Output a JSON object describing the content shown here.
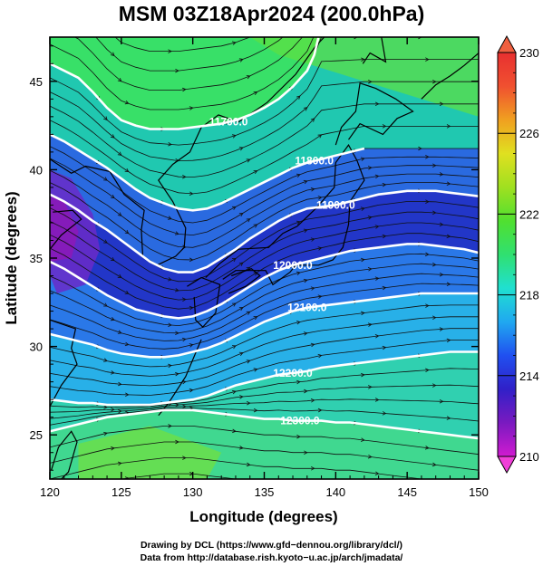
{
  "title": "MSM 03Z18Apr2024 (200.0hPa)",
  "xlabel": "Longitude (degrees)",
  "ylabel": "Latitude  (degrees)",
  "credits": [
    "Drawing by DCL (https://www.gfd−dennou.org/library/dcl/)",
    "Data from http://database.rish.kyoto−u.ac.jp/arch/jmadata/"
  ],
  "chart_data": {
    "type": "heatmap",
    "xlim": [
      120,
      150
    ],
    "ylim": [
      22.5,
      47.5
    ],
    "x_ticks": [
      "120",
      "125",
      "130",
      "135",
      "140",
      "145",
      "150"
    ],
    "y_ticks": [
      "25",
      "30",
      "35",
      "40",
      "45"
    ],
    "colorbar": {
      "range": [
        210,
        230
      ],
      "ticks": [
        "210",
        "214",
        "218",
        "222",
        "226",
        "230"
      ],
      "colors": [
        "#d01bd0",
        "#7a1ac0",
        "#3020c8",
        "#2050f0",
        "#20a8f0",
        "#20e0d0",
        "#30e070",
        "#50e030",
        "#a0e020",
        "#e0e020",
        "#f0a020",
        "#f05030",
        "#e83030"
      ]
    },
    "contours": [
      {
        "label": "11700.0",
        "points": [
          [
            120.0,
            46.0
          ],
          [
            121.0,
            45.6
          ],
          [
            122.0,
            45.2
          ],
          [
            123.0,
            44.4
          ],
          [
            124.0,
            43.5
          ],
          [
            125.0,
            42.8
          ],
          [
            126.0,
            42.5
          ],
          [
            127.0,
            42.3
          ],
          [
            128.0,
            42.3
          ],
          [
            129.0,
            42.3
          ],
          [
            130.0,
            42.4
          ],
          [
            131.0,
            42.5
          ],
          [
            132.0,
            42.6
          ],
          [
            133.0,
            42.8
          ],
          [
            134.0,
            43.1
          ],
          [
            135.0,
            43.5
          ],
          [
            136.0,
            44.0
          ],
          [
            137.0,
            44.7
          ],
          [
            138.0,
            45.6
          ],
          [
            138.5,
            46.5
          ],
          [
            138.8,
            47.5
          ]
        ]
      },
      {
        "label": "11800.0",
        "points": [
          [
            120.0,
            42.0
          ],
          [
            121.0,
            41.6
          ],
          [
            122.0,
            41.1
          ],
          [
            123.0,
            40.6
          ],
          [
            124.0,
            40.1
          ],
          [
            125.0,
            39.5
          ],
          [
            126.0,
            38.9
          ],
          [
            127.0,
            38.4
          ],
          [
            128.0,
            38.1
          ],
          [
            129.0,
            37.8
          ],
          [
            130.0,
            37.7
          ],
          [
            131.0,
            37.8
          ],
          [
            132.0,
            38.1
          ],
          [
            133.0,
            38.5
          ],
          [
            134.0,
            38.9
          ],
          [
            135.0,
            39.3
          ],
          [
            136.0,
            39.7
          ],
          [
            137.0,
            40.1
          ],
          [
            138.0,
            40.4
          ],
          [
            139.0,
            40.6
          ],
          [
            140.0,
            40.8
          ],
          [
            141.0,
            41.0
          ],
          [
            142.0,
            41.2
          ]
        ]
      },
      {
        "label": "11900.0",
        "points": [
          [
            120.0,
            38.6
          ],
          [
            121.0,
            38.2
          ],
          [
            122.0,
            37.7
          ],
          [
            123.0,
            37.1
          ],
          [
            124.0,
            36.6
          ],
          [
            125.0,
            36.0
          ],
          [
            126.0,
            35.4
          ],
          [
            127.0,
            34.8
          ],
          [
            128.0,
            34.4
          ],
          [
            129.0,
            34.2
          ],
          [
            130.0,
            34.2
          ],
          [
            131.0,
            34.5
          ],
          [
            132.0,
            35.0
          ],
          [
            133.0,
            35.5
          ],
          [
            134.0,
            36.1
          ],
          [
            135.0,
            36.6
          ],
          [
            136.0,
            37.1
          ],
          [
            137.0,
            37.5
          ],
          [
            138.0,
            37.8
          ],
          [
            139.0,
            37.9
          ],
          [
            140.0,
            38.0
          ],
          [
            141.0,
            38.2
          ],
          [
            142.0,
            38.4
          ],
          [
            143.0,
            38.6
          ],
          [
            144.0,
            38.7
          ],
          [
            145.0,
            38.8
          ],
          [
            146.0,
            38.8
          ],
          [
            147.0,
            38.8
          ],
          [
            148.0,
            38.7
          ],
          [
            149.0,
            38.6
          ],
          [
            150.0,
            38.5
          ]
        ]
      },
      {
        "label": "12000.0",
        "points": [
          [
            120.0,
            34.8
          ],
          [
            121.0,
            34.4
          ],
          [
            122.0,
            33.9
          ],
          [
            123.0,
            33.4
          ],
          [
            124.0,
            32.9
          ],
          [
            125.0,
            32.5
          ],
          [
            126.0,
            32.1
          ],
          [
            127.0,
            31.9
          ],
          [
            128.0,
            31.7
          ],
          [
            129.0,
            31.6
          ],
          [
            130.0,
            31.7
          ],
          [
            131.0,
            32.0
          ],
          [
            132.0,
            32.4
          ],
          [
            133.0,
            32.9
          ],
          [
            134.0,
            33.4
          ],
          [
            135.0,
            33.9
          ],
          [
            136.0,
            34.3
          ],
          [
            137.0,
            34.6
          ],
          [
            138.0,
            34.8
          ],
          [
            139.0,
            35.0
          ],
          [
            140.0,
            35.2
          ],
          [
            141.0,
            35.4
          ],
          [
            142.0,
            35.5
          ],
          [
            143.0,
            35.6
          ],
          [
            144.0,
            35.7
          ],
          [
            145.0,
            35.8
          ],
          [
            146.0,
            35.8
          ],
          [
            147.0,
            35.7
          ],
          [
            148.0,
            35.6
          ],
          [
            149.0,
            35.5
          ],
          [
            150.0,
            35.3
          ]
        ]
      },
      {
        "label": "12100.0",
        "points": [
          [
            120.0,
            30.7
          ],
          [
            121.0,
            30.5
          ],
          [
            122.0,
            30.3
          ],
          [
            123.0,
            30.1
          ],
          [
            124.0,
            29.8
          ],
          [
            125.0,
            29.6
          ],
          [
            126.0,
            29.5
          ],
          [
            127.0,
            29.4
          ],
          [
            128.0,
            29.4
          ],
          [
            129.0,
            29.5
          ],
          [
            130.0,
            29.7
          ],
          [
            131.0,
            29.9
          ],
          [
            132.0,
            30.2
          ],
          [
            133.0,
            30.6
          ],
          [
            134.0,
            31.0
          ],
          [
            135.0,
            31.4
          ],
          [
            136.0,
            31.7
          ],
          [
            137.0,
            32.0
          ],
          [
            138.0,
            32.2
          ],
          [
            139.0,
            32.3
          ],
          [
            140.0,
            32.4
          ],
          [
            141.0,
            32.5
          ],
          [
            142.0,
            32.6
          ],
          [
            143.0,
            32.7
          ],
          [
            144.0,
            32.8
          ],
          [
            145.0,
            32.9
          ],
          [
            146.0,
            33.0
          ],
          [
            147.0,
            33.0
          ],
          [
            148.0,
            33.0
          ],
          [
            149.0,
            33.0
          ],
          [
            150.0,
            33.0
          ]
        ]
      },
      {
        "label": "12200.0",
        "points": [
          [
            120.0,
            27.0
          ],
          [
            121.0,
            26.9
          ],
          [
            122.0,
            26.8
          ],
          [
            123.0,
            26.8
          ],
          [
            124.0,
            26.7
          ],
          [
            125.0,
            26.7
          ],
          [
            126.0,
            26.7
          ],
          [
            127.0,
            26.7
          ],
          [
            128.0,
            26.8
          ],
          [
            129.0,
            26.9
          ],
          [
            130.0,
            27.0
          ],
          [
            131.0,
            27.2
          ],
          [
            132.0,
            27.5
          ],
          [
            133.0,
            27.8
          ],
          [
            134.0,
            28.0
          ],
          [
            135.0,
            28.2
          ],
          [
            136.0,
            28.4
          ],
          [
            137.0,
            28.5
          ],
          [
            138.0,
            28.6
          ],
          [
            139.0,
            28.8
          ],
          [
            140.0,
            28.9
          ],
          [
            141.0,
            29.0
          ],
          [
            142.0,
            29.1
          ],
          [
            143.0,
            29.2
          ],
          [
            144.0,
            29.3
          ],
          [
            145.0,
            29.4
          ],
          [
            146.0,
            29.5
          ],
          [
            147.0,
            29.6
          ],
          [
            148.0,
            29.7
          ],
          [
            149.0,
            29.7
          ],
          [
            150.0,
            29.7
          ]
        ]
      },
      {
        "label": "12300.0",
        "points": [
          [
            120.0,
            25.2
          ],
          [
            121.0,
            25.4
          ],
          [
            122.0,
            25.6
          ],
          [
            123.0,
            25.8
          ],
          [
            124.0,
            26.0
          ],
          [
            125.0,
            26.1
          ],
          [
            126.0,
            26.2
          ],
          [
            127.0,
            26.3
          ],
          [
            128.0,
            26.4
          ],
          [
            129.0,
            26.4
          ],
          [
            130.0,
            26.4
          ],
          [
            131.0,
            26.3
          ],
          [
            132.0,
            26.2
          ],
          [
            133.0,
            26.1
          ],
          [
            134.0,
            26.0
          ],
          [
            135.0,
            25.9
          ],
          [
            136.0,
            25.9
          ],
          [
            137.0,
            25.8
          ],
          [
            138.0,
            25.8
          ],
          [
            139.0,
            25.8
          ],
          [
            140.0,
            25.7
          ],
          [
            141.0,
            25.7
          ],
          [
            142.0,
            25.6
          ],
          [
            143.0,
            25.5
          ],
          [
            144.0,
            25.4
          ],
          [
            145.0,
            25.3
          ],
          [
            146.0,
            25.2
          ],
          [
            147.0,
            25.1
          ],
          [
            148.0,
            25.0
          ],
          [
            149.0,
            24.9
          ],
          [
            150.0,
            24.8
          ]
        ]
      }
    ]
  }
}
